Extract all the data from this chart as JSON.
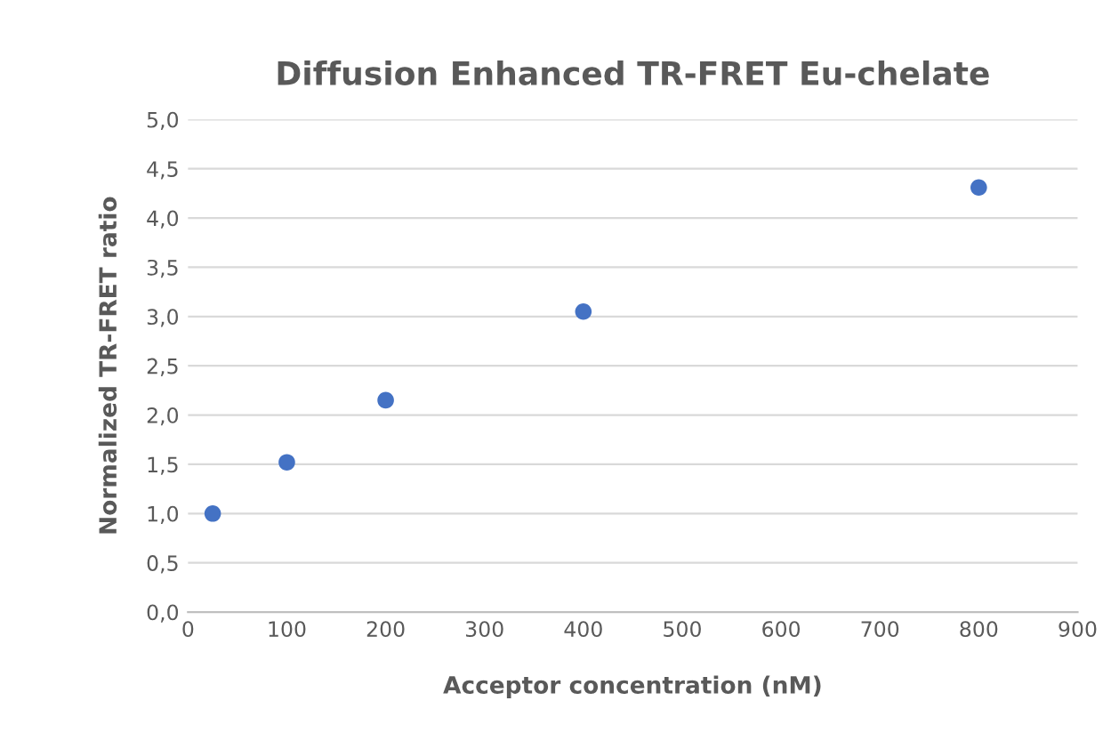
{
  "chart_data": {
    "type": "scatter",
    "title": "Diffusion Enhanced TR-FRET Eu-chelate",
    "xlabel": "Acceptor concentration (nM)",
    "ylabel": "Normalized TR-FRET ratio",
    "x": [
      25,
      100,
      200,
      400,
      800
    ],
    "series": [
      {
        "color": "#4472c4",
        "values": [
          1.0,
          1.52,
          2.15,
          3.05,
          4.31
        ]
      }
    ],
    "marker": "circle",
    "grid": "y",
    "legend": false,
    "xlim": [
      0,
      900
    ],
    "xticks": [
      0,
      100,
      200,
      300,
      400,
      500,
      600,
      700,
      800,
      900
    ],
    "ylim": [
      0,
      5
    ],
    "yticks": [
      {
        "value": 0,
        "label": "0,0"
      },
      {
        "value": 0.5,
        "label": "0,5"
      },
      {
        "value": 1,
        "label": "1,0"
      },
      {
        "value": 1.5,
        "label": "1,5"
      },
      {
        "value": 2,
        "label": "2,0"
      },
      {
        "value": 2.5,
        "label": "2,5"
      },
      {
        "value": 3,
        "label": "3,0"
      },
      {
        "value": 3.5,
        "label": "3,5"
      },
      {
        "value": 4,
        "label": "4,0"
      },
      {
        "value": 4.5,
        "label": "4,5"
      },
      {
        "value": 5,
        "label": "5,0"
      }
    ]
  }
}
